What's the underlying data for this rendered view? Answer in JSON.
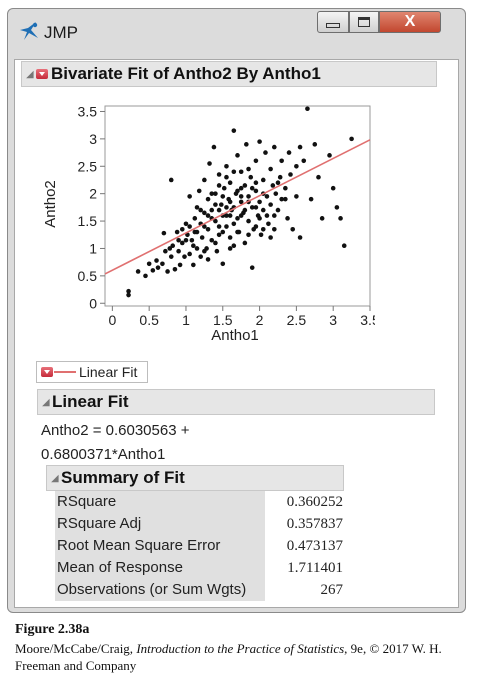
{
  "window": {
    "title": "JMP",
    "close_glyph": "X"
  },
  "bivariate": {
    "title": "Bivariate Fit of Antho2 By Antho1"
  },
  "chart_data": {
    "type": "scatter",
    "xlabel": "Antho1",
    "ylabel": "Antho2",
    "xlim": [
      -0.1,
      3.5
    ],
    "ylim": [
      -0.05,
      3.6
    ],
    "xticks": [
      "0",
      "0.5",
      "1",
      "1.5",
      "2",
      "2.5",
      "3",
      "3.5"
    ],
    "yticks": [
      "0",
      "0.5",
      "1",
      "1.5",
      "2",
      "2.5",
      "3",
      "3.5"
    ],
    "fit_line": {
      "intercept": 0.6030563,
      "slope": 0.6800371,
      "color": "#e07070"
    },
    "point_color": "#111111",
    "points": [
      [
        0.22,
        0.15
      ],
      [
        0.22,
        0.22
      ],
      [
        0.35,
        0.58
      ],
      [
        0.45,
        0.5
      ],
      [
        0.5,
        0.72
      ],
      [
        0.55,
        0.6
      ],
      [
        0.6,
        0.78
      ],
      [
        0.62,
        0.65
      ],
      [
        0.68,
        0.72
      ],
      [
        0.7,
        1.28
      ],
      [
        0.72,
        0.95
      ],
      [
        0.75,
        0.58
      ],
      [
        0.78,
        1.0
      ],
      [
        0.8,
        2.25
      ],
      [
        0.8,
        0.85
      ],
      [
        0.82,
        1.05
      ],
      [
        0.85,
        0.62
      ],
      [
        0.88,
        1.3
      ],
      [
        0.9,
        0.95
      ],
      [
        0.92,
        0.7
      ],
      [
        0.95,
        1.1
      ],
      [
        0.98,
        0.85
      ],
      [
        1.0,
        1.45
      ],
      [
        1.02,
        1.25
      ],
      [
        1.05,
        0.9
      ],
      [
        1.05,
        1.95
      ],
      [
        1.08,
        1.15
      ],
      [
        1.1,
        0.7
      ],
      [
        1.12,
        1.55
      ],
      [
        1.12,
        1.3
      ],
      [
        1.15,
        1.0
      ],
      [
        1.15,
        1.75
      ],
      [
        1.18,
        2.05
      ],
      [
        1.2,
        1.45
      ],
      [
        1.2,
        0.85
      ],
      [
        1.22,
        1.2
      ],
      [
        1.25,
        1.65
      ],
      [
        1.25,
        2.25
      ],
      [
        1.28,
        1.0
      ],
      [
        1.3,
        1.9
      ],
      [
        1.3,
        1.35
      ],
      [
        1.32,
        2.55
      ],
      [
        1.35,
        1.15
      ],
      [
        1.35,
        1.7
      ],
      [
        1.38,
        2.85
      ],
      [
        1.4,
        1.5
      ],
      [
        1.4,
        2.0
      ],
      [
        1.42,
        0.95
      ],
      [
        1.45,
        1.25
      ],
      [
        1.45,
        2.35
      ],
      [
        1.48,
        1.8
      ],
      [
        1.5,
        1.6
      ],
      [
        1.5,
        0.72
      ],
      [
        1.52,
        2.1
      ],
      [
        1.55,
        1.4
      ],
      [
        1.55,
        2.5
      ],
      [
        1.58,
        1.9
      ],
      [
        1.6,
        1.2
      ],
      [
        1.6,
        2.2
      ],
      [
        1.62,
        1.7
      ],
      [
        1.65,
        3.15
      ],
      [
        1.65,
        1.05
      ],
      [
        1.68,
        2.0
      ],
      [
        1.7,
        1.55
      ],
      [
        1.7,
        2.7
      ],
      [
        1.72,
        1.3
      ],
      [
        1.75,
        1.85
      ],
      [
        1.75,
        2.4
      ],
      [
        1.78,
        1.65
      ],
      [
        1.8,
        2.15
      ],
      [
        1.8,
        1.1
      ],
      [
        1.82,
        2.9
      ],
      [
        1.85,
        1.5
      ],
      [
        1.85,
        1.95
      ],
      [
        1.88,
        2.3
      ],
      [
        1.9,
        1.75
      ],
      [
        1.9,
        0.65
      ],
      [
        1.92,
        1.35
      ],
      [
        1.95,
        2.05
      ],
      [
        1.95,
        2.6
      ],
      [
        1.98,
        1.6
      ],
      [
        2.0,
        1.85
      ],
      [
        2.0,
        2.95
      ],
      [
        2.02,
        1.25
      ],
      [
        2.05,
        2.25
      ],
      [
        2.05,
        1.7
      ],
      [
        2.08,
        2.75
      ],
      [
        2.1,
        1.95
      ],
      [
        2.12,
        1.45
      ],
      [
        2.15,
        2.45
      ],
      [
        2.15,
        1.8
      ],
      [
        2.18,
        2.15
      ],
      [
        2.2,
        1.35
      ],
      [
        2.2,
        2.85
      ],
      [
        2.22,
        2.0
      ],
      [
        2.25,
        1.7
      ],
      [
        2.28,
        2.3
      ],
      [
        2.3,
        1.9
      ],
      [
        2.3,
        2.6
      ],
      [
        2.35,
        2.1
      ],
      [
        2.38,
        1.55
      ],
      [
        2.4,
        2.75
      ],
      [
        2.42,
        2.35
      ],
      [
        2.45,
        1.35
      ],
      [
        2.5,
        2.5
      ],
      [
        2.5,
        1.95
      ],
      [
        2.55,
        2.85
      ],
      [
        2.55,
        1.2
      ],
      [
        2.6,
        2.6
      ],
      [
        2.65,
        3.55
      ],
      [
        2.7,
        1.9
      ],
      [
        2.75,
        2.9
      ],
      [
        2.8,
        2.3
      ],
      [
        2.85,
        1.55
      ],
      [
        2.95,
        2.7
      ],
      [
        3.0,
        2.1
      ],
      [
        3.05,
        1.75
      ],
      [
        3.1,
        1.55
      ],
      [
        3.15,
        1.05
      ],
      [
        3.25,
        3.0
      ],
      [
        1.15,
        1.3
      ],
      [
        1.25,
        1.4
      ],
      [
        1.35,
        1.55
      ],
      [
        1.45,
        1.7
      ],
      [
        1.55,
        1.75
      ],
      [
        1.65,
        1.45
      ],
      [
        1.75,
        1.6
      ],
      [
        1.85,
        1.85
      ],
      [
        1.95,
        1.75
      ],
      [
        2.05,
        2.0
      ],
      [
        1.4,
        1.8
      ],
      [
        1.5,
        1.95
      ],
      [
        1.6,
        1.85
      ],
      [
        1.7,
        2.05
      ],
      [
        1.8,
        1.7
      ],
      [
        1.9,
        2.1
      ],
      [
        2.0,
        1.55
      ],
      [
        1.3,
        1.6
      ],
      [
        1.2,
        1.7
      ],
      [
        1.35,
        2.0
      ],
      [
        1.45,
        1.4
      ],
      [
        1.55,
        2.3
      ],
      [
        1.65,
        2.4
      ],
      [
        1.75,
        2.1
      ],
      [
        1.85,
        1.25
      ],
      [
        1.95,
        1.4
      ],
      [
        2.1,
        1.6
      ],
      [
        2.2,
        1.6
      ],
      [
        1.6,
        1.6
      ],
      [
        1.7,
        1.3
      ],
      [
        1.0,
        1.15
      ],
      [
        0.95,
        1.35
      ],
      [
        1.05,
        1.4
      ],
      [
        1.1,
        1.05
      ],
      [
        0.9,
        1.15
      ],
      [
        1.25,
        0.95
      ],
      [
        1.4,
        1.1
      ],
      [
        1.5,
        1.3
      ],
      [
        1.6,
        1.0
      ],
      [
        1.3,
        0.8
      ],
      [
        1.45,
        2.15
      ],
      [
        1.55,
        1.6
      ],
      [
        1.65,
        1.75
      ],
      [
        1.75,
        1.95
      ],
      [
        1.85,
        2.45
      ],
      [
        1.95,
        2.2
      ],
      [
        2.05,
        1.35
      ],
      [
        2.15,
        1.2
      ],
      [
        2.25,
        2.2
      ],
      [
        2.35,
        1.9
      ]
    ]
  },
  "legend": {
    "label": "Linear Fit"
  },
  "linear_fit": {
    "title": "Linear Fit",
    "equation_line1": "Antho2 = 0.6030563 +",
    "equation_line2": "0.6800371*Antho1"
  },
  "summary": {
    "title": "Summary of Fit",
    "rows": [
      {
        "label": "RSquare",
        "value": "0.360252"
      },
      {
        "label": "RSquare Adj",
        "value": "0.357837"
      },
      {
        "label": "Root Mean Square Error",
        "value": "0.473137"
      },
      {
        "label": "Mean of Response",
        "value": "1.711401"
      },
      {
        "label": "Observations (or Sum Wgts)",
        "value": "267"
      }
    ]
  },
  "caption": {
    "title": "Figure 2.38a",
    "authors": "Moore/McCabe/Craig, ",
    "book": "Introduction to the Practice of Statistics",
    "rest": ", 9e, © 2017 W. H. Freeman and Company"
  }
}
